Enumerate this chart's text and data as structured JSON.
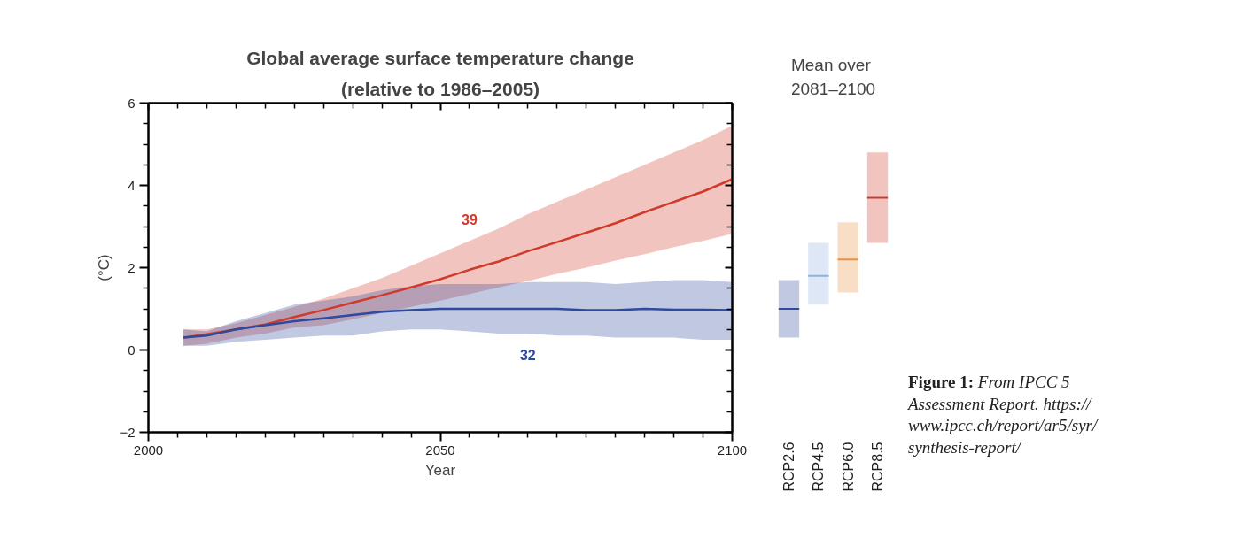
{
  "chart_data": [
    {
      "type": "line",
      "title": "Global average surface temperature change",
      "subtitle": "(relative to 1986–2005)",
      "xlabel": "Year",
      "ylabel": "(°C)",
      "x": [
        2006,
        2010,
        2015,
        2020,
        2025,
        2030,
        2035,
        2040,
        2045,
        2050,
        2055,
        2060,
        2065,
        2070,
        2075,
        2080,
        2085,
        2090,
        2095,
        2100
      ],
      "series": [
        {
          "color": "#d03a2a",
          "values": [
            0.3,
            0.38,
            0.5,
            0.62,
            0.8,
            0.97,
            1.15,
            1.33,
            1.52,
            1.72,
            1.95,
            2.15,
            2.4,
            2.62,
            2.85,
            3.08,
            3.35,
            3.6,
            3.85,
            4.15
          ],
          "lower": [
            0.1,
            0.15,
            0.3,
            0.4,
            0.55,
            0.6,
            0.75,
            0.9,
            1.05,
            1.2,
            1.36,
            1.52,
            1.68,
            1.85,
            2.0,
            2.17,
            2.33,
            2.5,
            2.65,
            2.82
          ],
          "upper": [
            0.5,
            0.5,
            0.65,
            0.85,
            1.05,
            1.25,
            1.5,
            1.75,
            2.05,
            2.35,
            2.65,
            2.95,
            3.3,
            3.6,
            3.9,
            4.2,
            4.5,
            4.8,
            5.1,
            5.45
          ]
        },
        {
          "color": "#2e4a9e",
          "values": [
            0.3,
            0.35,
            0.5,
            0.6,
            0.7,
            0.77,
            0.85,
            0.93,
            0.97,
            1.0,
            1.0,
            1.0,
            1.0,
            1.0,
            0.97,
            0.97,
            1.0,
            0.98,
            0.98,
            0.97
          ],
          "lower": [
            0.1,
            0.1,
            0.2,
            0.25,
            0.3,
            0.35,
            0.35,
            0.45,
            0.5,
            0.5,
            0.45,
            0.4,
            0.4,
            0.35,
            0.35,
            0.3,
            0.3,
            0.3,
            0.25,
            0.25
          ],
          "upper": [
            0.5,
            0.45,
            0.7,
            0.9,
            1.1,
            1.2,
            1.3,
            1.45,
            1.55,
            1.6,
            1.6,
            1.6,
            1.65,
            1.65,
            1.65,
            1.6,
            1.65,
            1.7,
            1.7,
            1.65
          ]
        }
      ],
      "annotations": [
        {
          "text": "39",
          "x": 2055,
          "y": 2.65
        },
        {
          "text": "32",
          "x": 2065,
          "y": 0.4
        }
      ],
      "xlim": [
        2000,
        2100
      ],
      "ylim": [
        -2,
        6
      ],
      "xticks": [
        2000,
        {
          "value": 2005,
          "label": null
        },
        {
          "value": 2010,
          "label": null
        },
        {
          "value": 2015,
          "label": null
        },
        {
          "value": 2020,
          "label": null
        },
        {
          "value": 2025,
          "label": null
        },
        {
          "value": 2030,
          "label": null
        },
        {
          "value": 2035,
          "label": null
        },
        {
          "value": 2040,
          "label": null
        },
        {
          "value": 2045,
          "label": null
        },
        2050,
        {
          "value": 2055,
          "label": null
        },
        {
          "value": 2060,
          "label": null
        },
        {
          "value": 2065,
          "label": null
        },
        {
          "value": 2070,
          "label": null
        },
        {
          "value": 2075,
          "label": null
        },
        {
          "value": 2080,
          "label": null
        },
        {
          "value": 2085,
          "label": null
        },
        {
          "value": 2090,
          "label": null
        },
        {
          "value": 2095,
          "label": null
        },
        2100
      ],
      "yticks": [
        {
          "value": -2,
          "label": "−2"
        },
        {
          "value": -1.5,
          "label": null
        },
        {
          "value": -1,
          "label": null
        },
        {
          "value": -0.5,
          "label": null
        },
        0,
        {
          "value": 0.5,
          "label": null
        },
        {
          "value": 1,
          "label": null
        },
        {
          "value": 1.5,
          "label": null
        },
        2,
        {
          "value": 2.5,
          "label": null
        },
        {
          "value": 3,
          "label": null
        },
        {
          "value": 3.5,
          "label": null
        },
        4,
        {
          "value": 4.5,
          "label": null
        },
        {
          "value": 5,
          "label": null
        },
        {
          "value": 5.5,
          "label": null
        },
        6
      ],
      "grid": false
    },
    {
      "type": "box",
      "title": "Mean over\n2081–2100",
      "categories": [
        "RCP2.6",
        "RCP4.5",
        "RCP6.0",
        "RCP8.5"
      ],
      "colors": [
        "#2e4a9e",
        "#8fb0e0",
        "#e8913f",
        "#d03a2a"
      ],
      "boxes": [
        {
          "low": 0.3,
          "q1": 0.3,
          "median": 1.0,
          "q3": 1.7,
          "high": 1.7
        },
        {
          "low": 1.1,
          "q1": 1.1,
          "median": 1.8,
          "q3": 2.6,
          "high": 2.6
        },
        {
          "low": 1.4,
          "q1": 1.4,
          "median": 2.2,
          "q3": 3.1,
          "high": 3.1
        },
        {
          "low": 2.6,
          "q1": 2.6,
          "median": 3.7,
          "q3": 4.8,
          "high": 4.8
        }
      ],
      "ylim": [
        -2,
        6
      ],
      "tick_labels": "x",
      "annotations": [
        "Figure 1: From IPCC 5 Assessment Report. https://www.ipcc.ch/report/ar5/syr/synthesis-report/"
      ]
    }
  ]
}
